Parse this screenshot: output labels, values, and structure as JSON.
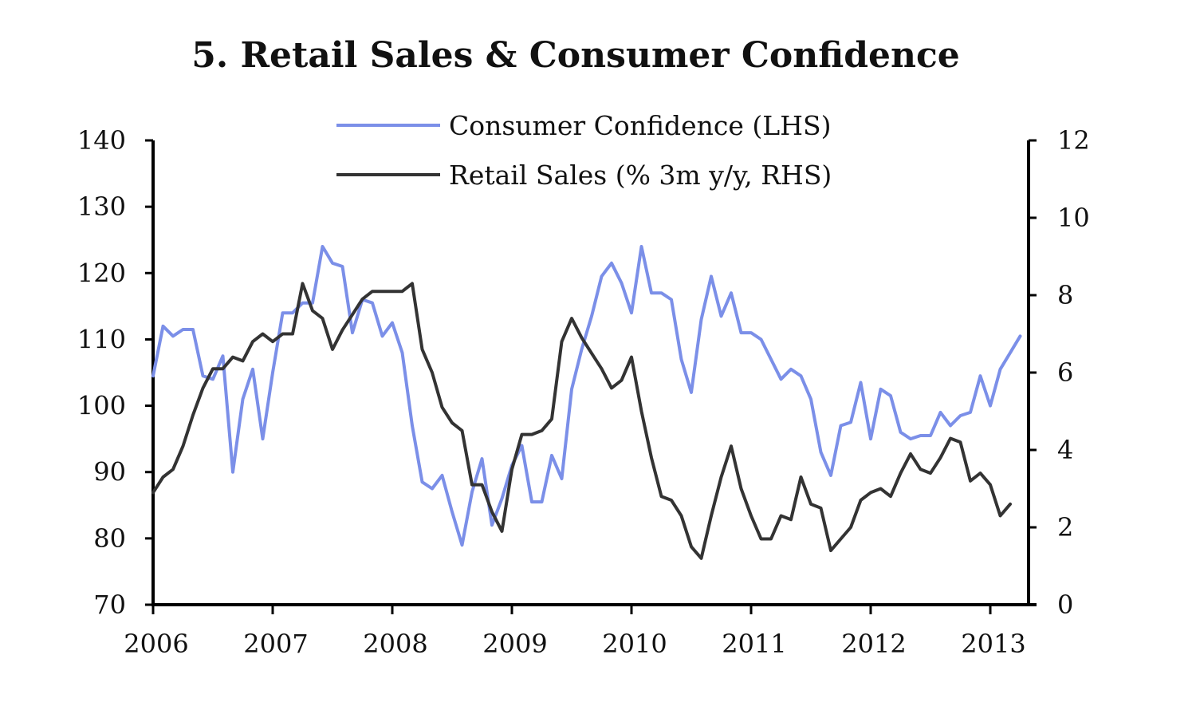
{
  "chart_data": {
    "type": "line",
    "title": "5. Retail Sales & Consumer Confidence",
    "x_ticks": [
      "2006",
      "2007",
      "2008",
      "2009",
      "2010",
      "2011",
      "2012",
      "2013"
    ],
    "y_left": {
      "min": 70,
      "max": 140,
      "ticks": [
        "140",
        "130",
        "120",
        "110",
        "100",
        "90",
        "80",
        "70"
      ]
    },
    "y_right": {
      "min": 0,
      "max": 12,
      "ticks": [
        "12",
        "10",
        "8",
        "6",
        "4",
        "2",
        "0"
      ]
    },
    "legend_position": "top-center",
    "series": [
      {
        "name": "Consumer Confidence (LHS)",
        "axis": "left",
        "color": "#7b8fe8",
        "start": "2006-01",
        "values": [
          104.5,
          112,
          110.5,
          111.5,
          111.5,
          104.5,
          104,
          107.5,
          90,
          101,
          105.5,
          95,
          105,
          114,
          114,
          115.5,
          115.5,
          124,
          121.5,
          121,
          111,
          116,
          115.5,
          110.5,
          112.5,
          108,
          97,
          88.5,
          87.5,
          89.5,
          84,
          79,
          87,
          92,
          82,
          86,
          91,
          94,
          85.5,
          85.5,
          92.5,
          89,
          102.5,
          108.5,
          113.5,
          119.5,
          121.5,
          118.5,
          114,
          124,
          117,
          117,
          116,
          107,
          102,
          113,
          119.5,
          113.5,
          117,
          111,
          111,
          110,
          107,
          104,
          105.5,
          104.5,
          101,
          93,
          89.5,
          97,
          97.5,
          103.5,
          95,
          102.5,
          101.5,
          96,
          95,
          95.5,
          95.5,
          99,
          97,
          98.5,
          99,
          104.5,
          100,
          105.5,
          108,
          110.5
        ]
      },
      {
        "name": "Retail Sales (% 3m y/y, RHS)",
        "axis": "right",
        "color": "#333333",
        "start": "2006-01",
        "values": [
          2.9,
          3.3,
          3.5,
          4.1,
          4.9,
          5.6,
          6.1,
          6.1,
          6.4,
          6.3,
          6.8,
          7,
          6.8,
          7,
          7,
          8.3,
          7.6,
          7.4,
          6.6,
          7.1,
          7.5,
          7.9,
          8.1,
          8.1,
          8.1,
          8.1,
          8.3,
          6.6,
          6,
          5.1,
          4.7,
          4.5,
          3.1,
          3.1,
          2.4,
          1.9,
          3.5,
          4.4,
          4.4,
          4.5,
          4.8,
          6.8,
          7.4,
          6.9,
          6.5,
          6.1,
          5.6,
          5.8,
          6.4,
          5,
          3.8,
          2.8,
          2.7,
          2.3,
          1.5,
          1.2,
          2.3,
          3.3,
          4.1,
          3,
          2.3,
          1.7,
          1.7,
          2.3,
          2.2,
          3.3,
          2.6,
          2.5,
          1.4,
          1.7,
          2,
          2.7,
          2.9,
          3,
          2.8,
          3.4,
          3.9,
          3.5,
          3.4,
          3.8,
          4.3,
          4.2,
          3.2,
          3.4,
          3.1,
          2.3,
          2.6
        ]
      }
    ]
  }
}
